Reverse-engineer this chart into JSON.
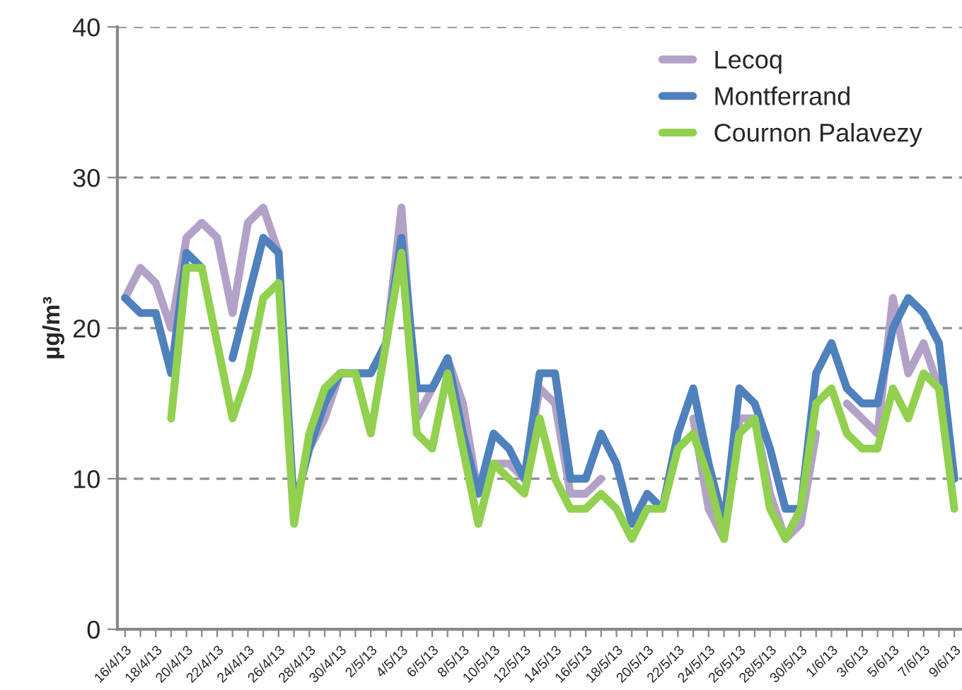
{
  "chart_data": {
    "type": "line",
    "ylabel": "µg/m³",
    "categories": [
      "16/4/13",
      null,
      "18/4/13",
      null,
      "20/4/13",
      null,
      "22/4/13",
      null,
      "24/4/13",
      null,
      "26/4/13",
      null,
      "28/4/13",
      null,
      "30/4/13",
      null,
      "2/5/13",
      null,
      "4/5/13",
      null,
      "6/5/13",
      null,
      "8/5/13",
      null,
      "10/5/13",
      null,
      "12/5/13",
      null,
      "14/5/13",
      null,
      "16/5/13",
      null,
      "18/5/13",
      null,
      "20/5/13",
      null,
      "22/5/13",
      null,
      "24/5/13",
      null,
      "26/5/13",
      null,
      "28/5/13",
      null,
      "30/5/13",
      null,
      "1/6/13",
      null,
      "3/6/13",
      null,
      "5/6/13",
      null,
      "7/6/13",
      null,
      "9/6/13"
    ],
    "series": [
      {
        "name": "Lecoq",
        "color": "#b3a2c7",
        "values": [
          22,
          24,
          23,
          20,
          26,
          27,
          26,
          21,
          27,
          28,
          25,
          null,
          12,
          14,
          17,
          17,
          17,
          19,
          28,
          14,
          16,
          18,
          15,
          9,
          11,
          11,
          10,
          16,
          15,
          9,
          9,
          10,
          null,
          null,
          null,
          null,
          null,
          14,
          8,
          6,
          14,
          14,
          9,
          6,
          7,
          13,
          null,
          15,
          14,
          13,
          22,
          17,
          19,
          16,
          10
        ]
      },
      {
        "name": "Montferrand",
        "color": "#4f81bd",
        "values": [
          22,
          21,
          21,
          17,
          25,
          24,
          null,
          18,
          22,
          26,
          25,
          8,
          12,
          15,
          17,
          17,
          17,
          19,
          26,
          16,
          16,
          18,
          13,
          9,
          13,
          12,
          10,
          17,
          17,
          10,
          10,
          13,
          11,
          7,
          9,
          8,
          13,
          16,
          11,
          7,
          16,
          15,
          12,
          8,
          8,
          17,
          19,
          16,
          15,
          15,
          20,
          22,
          21,
          19,
          10
        ]
      },
      {
        "name": "Cournon Palavezy",
        "color": "#92d050",
        "values": [
          null,
          null,
          null,
          14,
          24,
          24,
          19,
          14,
          17,
          22,
          23,
          7,
          13,
          16,
          17,
          17,
          13,
          19,
          25,
          13,
          12,
          17,
          12,
          7,
          11,
          10,
          9,
          14,
          10,
          8,
          8,
          9,
          8,
          6,
          8,
          8,
          12,
          13,
          10,
          6,
          13,
          14,
          8,
          6,
          8,
          15,
          16,
          13,
          12,
          12,
          16,
          14,
          17,
          16,
          8
        ]
      }
    ],
    "ylim": [
      0,
      40
    ],
    "yticks": [
      0,
      10,
      20,
      30,
      40
    ],
    "grid": "y",
    "legend": "top right",
    "line_style": "solid",
    "marker": "none"
  }
}
